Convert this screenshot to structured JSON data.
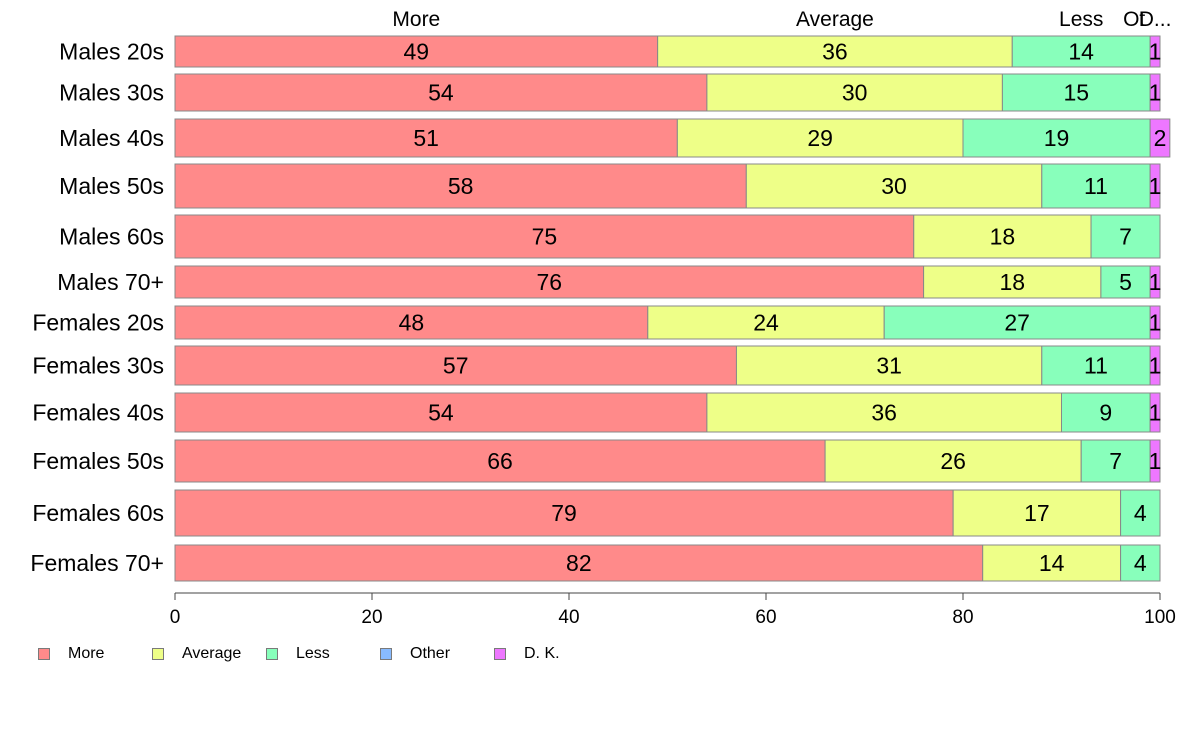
{
  "chart_data": {
    "type": "bar",
    "orientation": "horizontal",
    "stacked": true,
    "categories": [
      "Males 20s",
      "Males 30s",
      "Males 40s",
      "Males 50s",
      "Males 60s",
      "Males 70+",
      "Females 20s",
      "Females 30s",
      "Females 40s",
      "Females 50s",
      "Females 60s",
      "Females 70+"
    ],
    "series": [
      {
        "name": "More",
        "color": "#FF8A8A",
        "values": [
          49,
          54,
          51,
          58,
          75,
          76,
          48,
          57,
          54,
          66,
          79,
          82
        ]
      },
      {
        "name": "Average",
        "color": "#EEFF88",
        "values": [
          36,
          30,
          29,
          30,
          18,
          18,
          24,
          31,
          36,
          26,
          17,
          14
        ]
      },
      {
        "name": "Less",
        "color": "#88FFBB",
        "values": [
          14,
          15,
          19,
          11,
          7,
          5,
          27,
          11,
          9,
          7,
          4,
          4
        ]
      },
      {
        "name": "Other",
        "color": "#88BBFF",
        "values": [
          0,
          0,
          0,
          0,
          0,
          0,
          0,
          0,
          0,
          0,
          0,
          0
        ]
      },
      {
        "name": "D. K.",
        "color": "#EE77FF",
        "values": [
          1,
          1,
          2,
          1,
          0,
          1,
          1,
          1,
          1,
          1,
          0,
          0
        ]
      }
    ],
    "top_labels": [
      "More",
      "Average",
      "Less",
      "Ot",
      "D..."
    ],
    "xlim": [
      0,
      100
    ],
    "xticks": [
      "0",
      "20",
      "40",
      "60",
      "80",
      "100"
    ],
    "grid": false,
    "legend_position": "bottom-left"
  }
}
